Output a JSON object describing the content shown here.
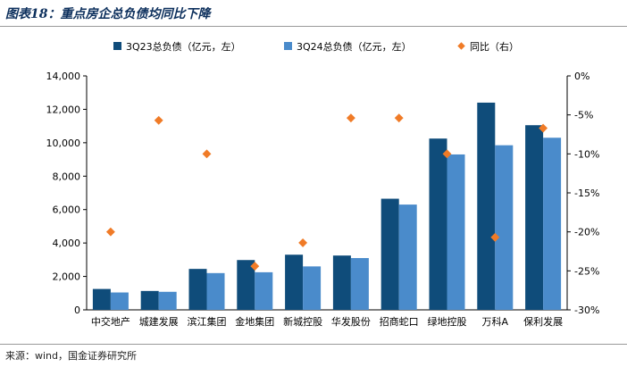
{
  "title": "图表18：重点房企总负债均同比下降",
  "source": "来源：wind，国金证券研究所",
  "chart_data": {
    "type": "bar",
    "categories": [
      "中交地产",
      "城建发展",
      "滨江集团",
      "金地集团",
      "新城控股",
      "华发股份",
      "招商蛇口",
      "绿地控股",
      "万科A",
      "保利发展"
    ],
    "series": [
      {
        "name": "3Q23总负债（亿元，左）",
        "type": "bar",
        "axis": "left",
        "color": "#0f4c7a",
        "values": [
          1250,
          1130,
          2450,
          2980,
          3300,
          3250,
          6650,
          10250,
          12400,
          11050
        ]
      },
      {
        "name": "3Q24总负债（亿元，左）",
        "type": "bar",
        "axis": "left",
        "color": "#4a8bcb",
        "values": [
          1040,
          1080,
          2200,
          2250,
          2600,
          3100,
          6300,
          9300,
          9850,
          10300
        ]
      },
      {
        "name": "同比（右）",
        "type": "scatter",
        "axis": "right",
        "color": "#f07b27",
        "values": [
          -20.0,
          -5.7,
          -10.0,
          -24.4,
          -21.4,
          -5.4,
          -5.4,
          -10.0,
          -20.7,
          -6.7
        ]
      }
    ],
    "y_left": {
      "min": 0,
      "max": 14000,
      "ticks": [
        "0",
        "2,000",
        "4,000",
        "6,000",
        "8,000",
        "10,000",
        "12,000",
        "14,000"
      ]
    },
    "y_right": {
      "min": -30,
      "max": 0,
      "ticks": [
        "-30%",
        "-25%",
        "-20%",
        "-15%",
        "-10%",
        "-5%",
        "0%"
      ]
    },
    "legend_position": "top",
    "grid": false
  }
}
